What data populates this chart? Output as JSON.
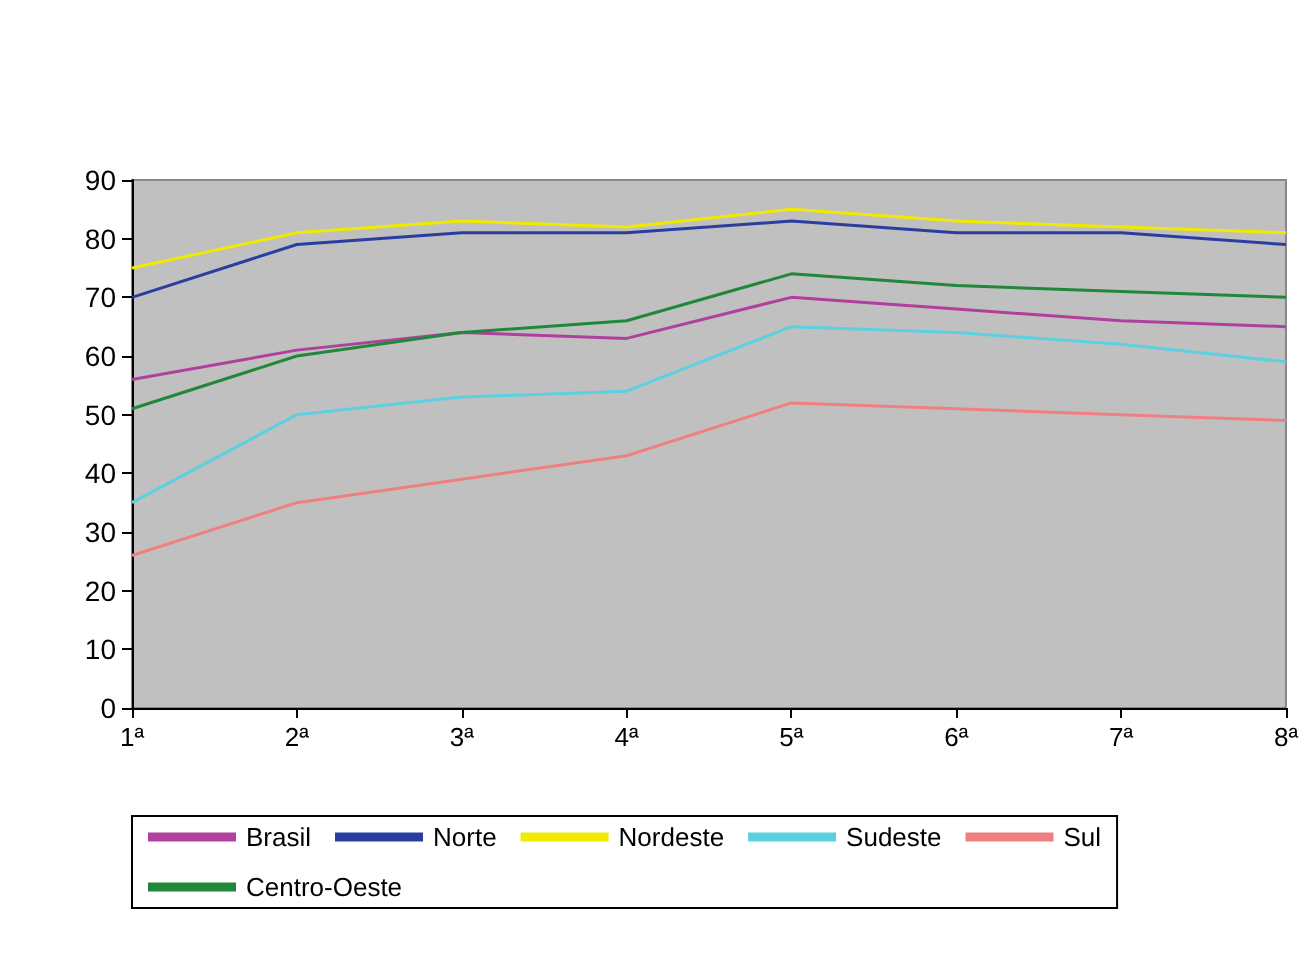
{
  "chart_data": {
    "type": "line",
    "categories": [
      "1ª",
      "2ª",
      "3ª",
      "4ª",
      "5ª",
      "6ª",
      "7ª",
      "8ª"
    ],
    "series": [
      {
        "name": "Brasil",
        "color": "#b0409e",
        "values": [
          56,
          61,
          64,
          63,
          70,
          68,
          66,
          65
        ]
      },
      {
        "name": "Norte",
        "color": "#2b3ea0",
        "values": [
          70,
          79,
          81,
          81,
          83,
          81,
          81,
          79
        ]
      },
      {
        "name": "Nordeste",
        "color": "#f0ea00",
        "values": [
          75,
          81,
          83,
          82,
          85,
          83,
          82,
          81
        ]
      },
      {
        "name": "Sudeste",
        "color": "#5cd0e0",
        "values": [
          35,
          50,
          53,
          54,
          65,
          64,
          62,
          59
        ]
      },
      {
        "name": "Sul",
        "color": "#f08080",
        "values": [
          26,
          35,
          39,
          43,
          52,
          51,
          50,
          49
        ]
      },
      {
        "name": "Centro-Oeste",
        "color": "#208838",
        "values": [
          51,
          60,
          64,
          66,
          74,
          72,
          71,
          70
        ]
      }
    ],
    "ylim": [
      0,
      90
    ],
    "yticks": [
      0,
      10,
      20,
      30,
      40,
      50,
      60,
      70,
      80,
      90
    ],
    "grid": false,
    "legend": "bottom",
    "marker": "none",
    "line_style": "solid"
  }
}
